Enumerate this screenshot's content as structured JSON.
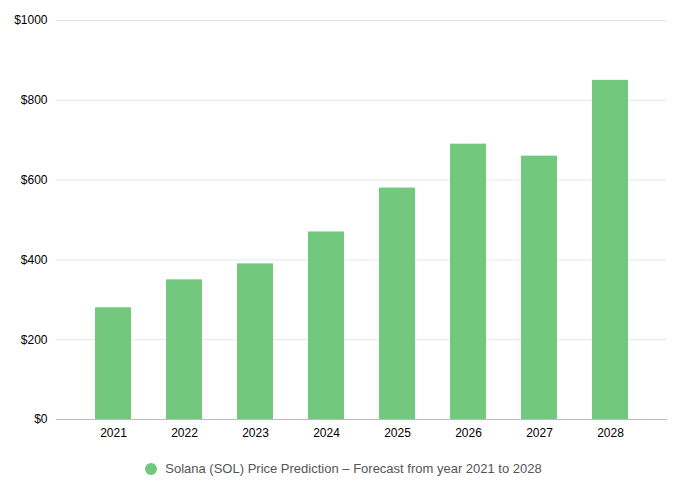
{
  "chart_data": {
    "type": "bar",
    "categories": [
      "2021",
      "2022",
      "2023",
      "2024",
      "2025",
      "2026",
      "2027",
      "2028"
    ],
    "series": [
      {
        "name": "Solana (SOL) Price Prediction – Forecast from year 2021 to 2028",
        "color": "#72c97e",
        "values": [
          280,
          350,
          390,
          470,
          580,
          690,
          660,
          850
        ]
      }
    ],
    "ylim": [
      0,
      1000
    ],
    "yticks": [
      {
        "value": 0,
        "label": "$0"
      },
      {
        "value": 200,
        "label": "$200"
      },
      {
        "value": 400,
        "label": "$400"
      },
      {
        "value": 600,
        "label": "$600"
      },
      {
        "value": 800,
        "label": "$800"
      },
      {
        "value": 1000,
        "label": "$1000"
      }
    ],
    "grid": true,
    "legend": "bottom"
  }
}
